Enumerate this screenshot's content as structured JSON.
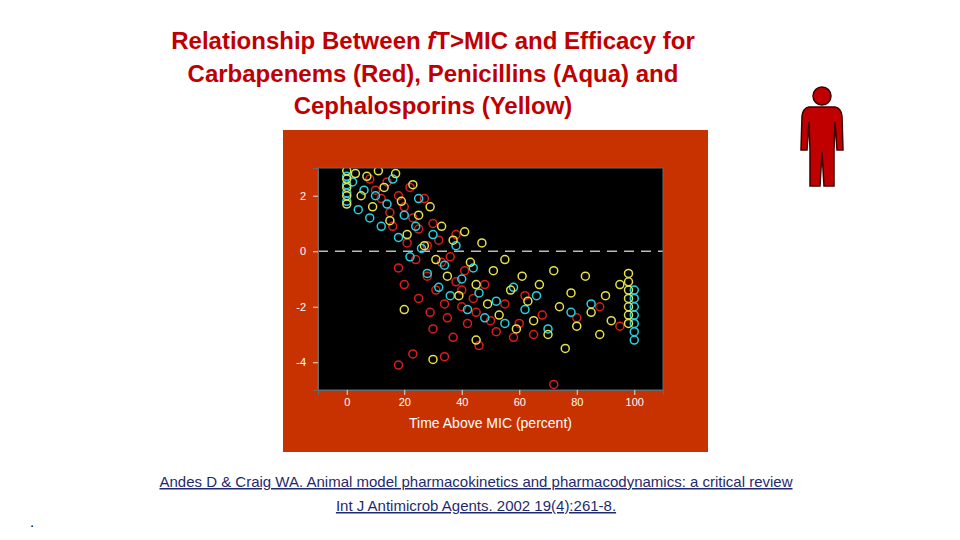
{
  "chart_data": {
    "type": "scatter",
    "title": "Relationship Between fT>MIC and Efficacy for Carbapenems (Red), Penicillins (Aqua) and Cephalosporins (Yellow)",
    "xlabel": "Time Above MIC (percent)",
    "xlim": [
      -10,
      110
    ],
    "xticks": [
      0,
      20,
      40,
      60,
      80,
      100
    ],
    "ylim": [
      -5,
      3
    ],
    "yticks": [
      2,
      0,
      -2,
      -4
    ],
    "grid": false,
    "reference_line": {
      "y": 0,
      "line_style": "dashed"
    },
    "series": [
      {
        "color": "#dd1c1c",
        "marker": "circle-open",
        "x": [
          8,
          10,
          12,
          14,
          15,
          16,
          18,
          18,
          20,
          20,
          21,
          22,
          23,
          24,
          25,
          25,
          27,
          28,
          28,
          29,
          30,
          30,
          31,
          32,
          33,
          34,
          35,
          36,
          37,
          38,
          38,
          40,
          40,
          41,
          42,
          44,
          45,
          46,
          48,
          50,
          52,
          55,
          58,
          60,
          62,
          65,
          68,
          72,
          18,
          23,
          34,
          80,
          88,
          95
        ],
        "values": [
          2.6,
          2.2,
          1.9,
          2.5,
          1.4,
          0.9,
          2.0,
          -0.6,
          1.6,
          -1.2,
          0.3,
          2.3,
          1.2,
          -0.3,
          -1.7,
          0.8,
          1.9,
          -0.9,
          0.2,
          -2.2,
          1.0,
          -2.8,
          -1.4,
          0.4,
          -0.4,
          -1.9,
          -2.4,
          -0.2,
          -3.1,
          0.6,
          -1.1,
          -2.0,
          -1.4,
          -0.7,
          -2.6,
          -1.7,
          -2.2,
          -3.4,
          -1.2,
          -2.5,
          -2.9,
          -1.9,
          -3.1,
          -2.6,
          -1.6,
          -3.0,
          -2.3,
          -4.8,
          -4.1,
          -3.7,
          -3.8,
          -2.4,
          -2.0,
          -2.7
        ]
      },
      {
        "color": "#22d4e2",
        "marker": "circle-open",
        "x": [
          0,
          0,
          0,
          0,
          2,
          4,
          6,
          8,
          10,
          12,
          14,
          16,
          18,
          20,
          22,
          24,
          25,
          26,
          28,
          30,
          32,
          34,
          36,
          38,
          40,
          42,
          44,
          46,
          48,
          52,
          55,
          58,
          62,
          66,
          70,
          78,
          85,
          100,
          100,
          100,
          100,
          100,
          100,
          100
        ],
        "values": [
          2.7,
          2.4,
          2.1,
          1.8,
          2.5,
          1.5,
          2.2,
          1.2,
          2.0,
          0.9,
          1.7,
          2.6,
          0.5,
          1.3,
          -0.2,
          0.9,
          1.9,
          0.1,
          -0.8,
          0.6,
          -1.3,
          -0.5,
          -1.6,
          0.2,
          -1.0,
          -2.1,
          -0.6,
          -1.5,
          -2.4,
          -1.8,
          -2.6,
          -1.3,
          -2.1,
          -1.6,
          -2.8,
          -2.2,
          -1.9,
          -1.4,
          -1.7,
          -2.0,
          -2.3,
          -2.6,
          -2.9,
          -3.2
        ]
      },
      {
        "color": "#e6e04a",
        "marker": "circle-open",
        "x": [
          0,
          0,
          0,
          0,
          0,
          3,
          5,
          7,
          9,
          11,
          13,
          15,
          17,
          19,
          21,
          23,
          25,
          27,
          29,
          31,
          33,
          35,
          37,
          39,
          41,
          43,
          45,
          47,
          49,
          51,
          53,
          55,
          57,
          59,
          61,
          63,
          65,
          67,
          70,
          72,
          74,
          76,
          78,
          80,
          83,
          85,
          88,
          90,
          92,
          95,
          98,
          98,
          98,
          98,
          98,
          98,
          98,
          30,
          45,
          20
        ],
        "values": [
          2.9,
          2.6,
          2.3,
          2.0,
          1.7,
          2.8,
          2.0,
          2.7,
          1.6,
          2.9,
          2.3,
          1.1,
          2.8,
          1.8,
          0.6,
          2.4,
          1.3,
          0.2,
          1.6,
          -0.3,
          0.9,
          -0.9,
          0.4,
          -1.6,
          0.7,
          -0.4,
          -1.2,
          0.3,
          -1.9,
          -0.7,
          -2.3,
          -0.3,
          -1.4,
          -2.8,
          -0.9,
          -1.8,
          -2.5,
          -1.2,
          -3.0,
          -0.7,
          -2.0,
          -3.5,
          -1.5,
          -2.7,
          -0.9,
          -2.2,
          -3.0,
          -1.6,
          -2.5,
          -1.2,
          -0.8,
          -1.1,
          -1.4,
          -1.7,
          -2.0,
          -2.3,
          -2.6,
          -3.9,
          -3.2,
          -2.1
        ]
      }
    ]
  },
  "citation": [
    "Andes D & Craig WA. Animal model pharmacokinetics and pharmacodynamics: a critical review",
    "Int J Antimicrob Agents. 2002 19(4):261-8."
  ],
  "footnote": "."
}
